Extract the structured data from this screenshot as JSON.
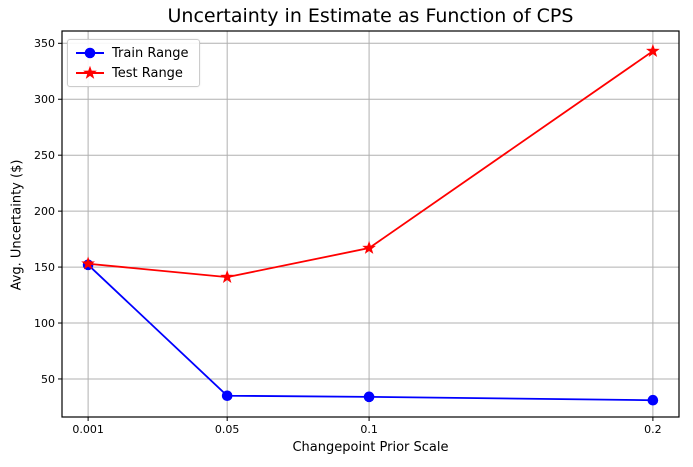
{
  "title": "Uncertainty in Estimate as Function of CPS",
  "chart_data": {
    "type": "line",
    "title": "Uncertainty in Estimate as Function of CPS",
    "xlabel": "Changepoint Prior Scale",
    "ylabel": "Avg. Uncertainty ($)",
    "x": [
      0.001,
      0.05,
      0.1,
      0.2
    ],
    "xtick_labels": [
      "0.001",
      "0.05",
      "0.1",
      "0.2"
    ],
    "yticks": [
      50,
      100,
      150,
      200,
      250,
      300,
      350
    ],
    "xlim": [
      -0.0082,
      0.2092
    ],
    "ylim": [
      16,
      361
    ],
    "grid": true,
    "legend_position": "upper left",
    "series": [
      {
        "name": "Train Range",
        "color": "#0000ff",
        "marker": "circle",
        "values": [
          152,
          35,
          34,
          31
        ]
      },
      {
        "name": "Test Range",
        "color": "#ff0000",
        "marker": "star",
        "values": [
          153,
          141,
          167,
          343
        ]
      }
    ]
  },
  "colors": {
    "grid": "#b0b0b0",
    "axis": "#000000",
    "text": "#000000",
    "legend_border": "#cccccc",
    "background": "#ffffff"
  }
}
